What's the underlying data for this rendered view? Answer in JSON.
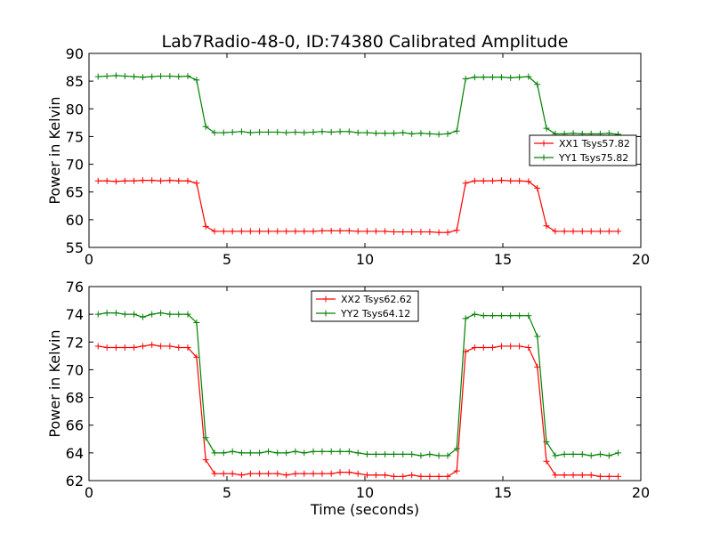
{
  "title": "Lab7Radio-48-0, ID:74380 Calibrated Amplitude",
  "chart_data": [
    {
      "type": "line",
      "ylabel": "Power in Kelvin",
      "xlabel": "",
      "xlim": [
        0,
        20
      ],
      "ylim": [
        55,
        90
      ],
      "xticks": [
        0,
        5,
        10,
        15,
        20
      ],
      "yticks": [
        55,
        60,
        65,
        70,
        75,
        80,
        85,
        90
      ],
      "legend_position": "center-right",
      "x": [
        0.33,
        0.65,
        0.98,
        1.3,
        1.63,
        1.95,
        2.28,
        2.6,
        2.93,
        3.25,
        3.58,
        3.9,
        4.23,
        4.55,
        4.88,
        5.2,
        5.53,
        5.85,
        6.18,
        6.5,
        6.83,
        7.15,
        7.48,
        7.8,
        8.13,
        8.45,
        8.78,
        9.1,
        9.43,
        9.75,
        10.08,
        10.4,
        10.73,
        11.05,
        11.38,
        11.7,
        12.03,
        12.35,
        12.68,
        13.0,
        13.33,
        13.65,
        13.98,
        14.3,
        14.63,
        14.95,
        15.28,
        15.6,
        15.93,
        16.25,
        16.58,
        16.9,
        17.23,
        17.55,
        17.88,
        18.2,
        18.53,
        18.85,
        19.18
      ],
      "series": [
        {
          "name": "XX1 Tsys57.82",
          "color": "#ff0000",
          "values": [
            67.0,
            67.0,
            66.9,
            67.0,
            67.0,
            67.1,
            67.1,
            67.0,
            67.1,
            67.0,
            67.0,
            66.6,
            58.8,
            57.9,
            57.9,
            57.9,
            57.9,
            57.9,
            57.9,
            57.9,
            57.9,
            57.9,
            57.9,
            57.9,
            57.9,
            58.0,
            58.0,
            58.0,
            58.0,
            57.9,
            57.9,
            57.9,
            57.9,
            57.8,
            57.8,
            57.8,
            57.8,
            57.8,
            57.7,
            57.7,
            58.1,
            66.6,
            67.0,
            67.0,
            67.0,
            67.1,
            67.0,
            67.0,
            66.9,
            65.7,
            58.9,
            57.9,
            57.9,
            57.9,
            57.9,
            57.9,
            57.9,
            57.9,
            57.9
          ]
        },
        {
          "name": "YY1 Tsys75.82",
          "color": "#008000",
          "values": [
            85.8,
            85.9,
            86.0,
            85.9,
            85.8,
            85.7,
            85.8,
            85.9,
            85.9,
            85.8,
            85.9,
            85.2,
            76.8,
            75.7,
            75.7,
            75.8,
            75.9,
            75.7,
            75.8,
            75.8,
            75.8,
            75.7,
            75.8,
            75.7,
            75.8,
            75.9,
            75.8,
            75.9,
            75.9,
            75.7,
            75.7,
            75.6,
            75.6,
            75.6,
            75.7,
            75.5,
            75.6,
            75.5,
            75.4,
            75.5,
            76.0,
            85.4,
            85.7,
            85.7,
            85.7,
            85.7,
            85.6,
            85.7,
            85.8,
            84.4,
            76.5,
            75.5,
            75.5,
            75.6,
            75.5,
            75.5,
            75.5,
            75.6,
            75.4
          ]
        }
      ]
    },
    {
      "type": "line",
      "ylabel": "Power in Kelvin",
      "xlabel": "Time (seconds)",
      "xlim": [
        0,
        20
      ],
      "ylim": [
        62,
        76
      ],
      "xticks": [
        0,
        5,
        10,
        15,
        20
      ],
      "yticks": [
        62,
        64,
        66,
        68,
        70,
        72,
        74,
        76
      ],
      "legend_position": "upper-center",
      "x": [
        0.33,
        0.65,
        0.98,
        1.3,
        1.63,
        1.95,
        2.28,
        2.6,
        2.93,
        3.25,
        3.58,
        3.9,
        4.23,
        4.55,
        4.88,
        5.2,
        5.53,
        5.85,
        6.18,
        6.5,
        6.83,
        7.15,
        7.48,
        7.8,
        8.13,
        8.45,
        8.78,
        9.1,
        9.43,
        9.75,
        10.08,
        10.4,
        10.73,
        11.05,
        11.38,
        11.7,
        12.03,
        12.35,
        12.68,
        13.0,
        13.33,
        13.65,
        13.98,
        14.3,
        14.63,
        14.95,
        15.28,
        15.6,
        15.93,
        16.25,
        16.58,
        16.9,
        17.23,
        17.55,
        17.88,
        18.2,
        18.53,
        18.85,
        19.18
      ],
      "series": [
        {
          "name": "XX2 Tsys62.62",
          "color": "#ff0000",
          "values": [
            71.7,
            71.6,
            71.6,
            71.6,
            71.6,
            71.7,
            71.8,
            71.7,
            71.7,
            71.6,
            71.6,
            70.9,
            63.5,
            62.5,
            62.5,
            62.5,
            62.4,
            62.5,
            62.5,
            62.5,
            62.5,
            62.4,
            62.5,
            62.5,
            62.5,
            62.5,
            62.5,
            62.6,
            62.6,
            62.5,
            62.4,
            62.4,
            62.4,
            62.3,
            62.3,
            62.4,
            62.3,
            62.3,
            62.3,
            62.3,
            62.7,
            71.3,
            71.6,
            71.6,
            71.6,
            71.7,
            71.7,
            71.7,
            71.6,
            70.2,
            63.4,
            62.4,
            62.4,
            62.4,
            62.4,
            62.4,
            62.3,
            62.3,
            62.3
          ]
        },
        {
          "name": "YY2 Tsys64.12",
          "color": "#008000",
          "values": [
            74.0,
            74.1,
            74.1,
            74.0,
            74.0,
            73.8,
            74.0,
            74.1,
            74.0,
            74.0,
            74.0,
            73.4,
            65.1,
            64.0,
            64.0,
            64.1,
            64.0,
            64.0,
            64.0,
            64.1,
            64.0,
            64.0,
            64.1,
            64.0,
            64.1,
            64.1,
            64.1,
            64.1,
            64.1,
            64.0,
            63.9,
            63.9,
            63.9,
            63.9,
            63.9,
            63.9,
            63.8,
            63.9,
            63.8,
            63.8,
            64.3,
            73.7,
            74.0,
            73.9,
            73.9,
            73.9,
            73.9,
            73.9,
            73.9,
            72.4,
            64.8,
            63.8,
            63.9,
            63.9,
            63.9,
            63.8,
            63.9,
            63.8,
            64.0
          ]
        }
      ]
    }
  ]
}
